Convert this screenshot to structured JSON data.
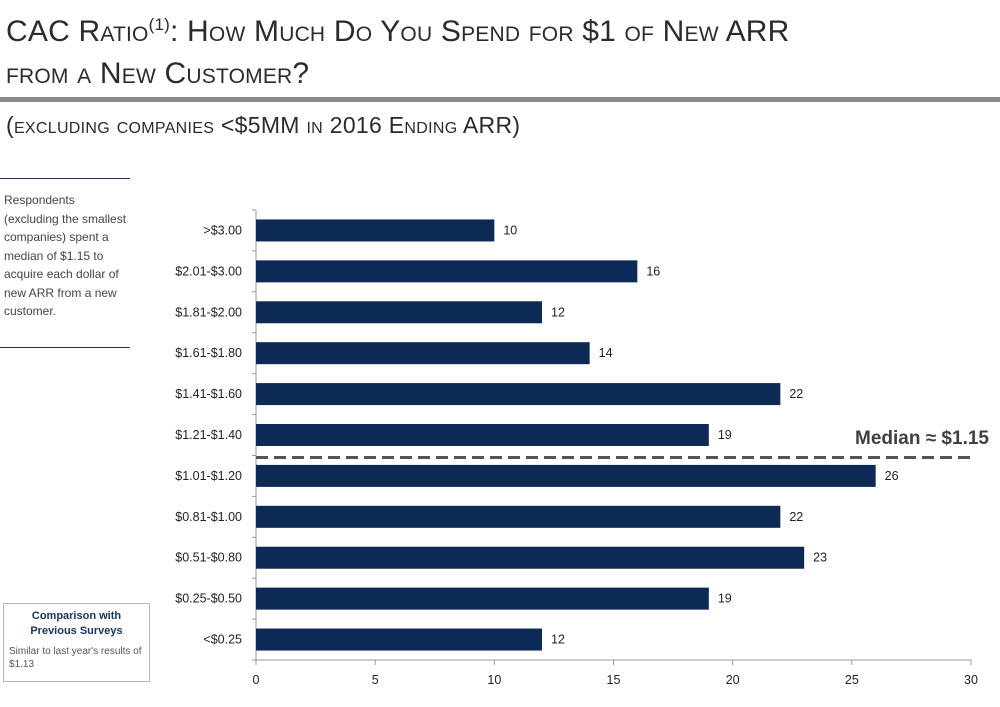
{
  "header": {
    "title_line1_main": "CAC Ratio",
    "title_line1_sup": "(1)",
    "title_line1_rest": ": How Much Do You Spend for $1 of New ARR",
    "title_line2": "from a New Customer?",
    "subtitle": "(excluding companies <$5MM in 2016 Ending ARR)"
  },
  "side_note": {
    "text": "Respondents (excluding the smallest companies) spent a median of $1.15 to acquire each dollar of new ARR from a new customer."
  },
  "comparison": {
    "title": "Comparison with Previous Surveys",
    "text": "Similar to last year's results of $1.13"
  },
  "chart_data": {
    "type": "bar",
    "orientation": "horizontal",
    "categories": [
      ">$3.00",
      "$2.01-$3.00",
      "$1.81-$2.00",
      "$1.61-$1.80",
      "$1.41-$1.60",
      "$1.21-$1.40",
      "$1.01-$1.20",
      "$0.81-$1.00",
      "$0.51-$0.80",
      "$0.25-$0.50",
      "<$0.25"
    ],
    "values": [
      10,
      16,
      12,
      14,
      22,
      19,
      26,
      22,
      23,
      19,
      12
    ],
    "xlim": [
      0,
      30
    ],
    "xticks": [
      0,
      5,
      10,
      15,
      20,
      25,
      30
    ],
    "grid": false,
    "bar_color": "#0d2a57",
    "median_line": {
      "label": "Median ≈ $1.15",
      "color": "#555555",
      "style": "dashed"
    }
  }
}
